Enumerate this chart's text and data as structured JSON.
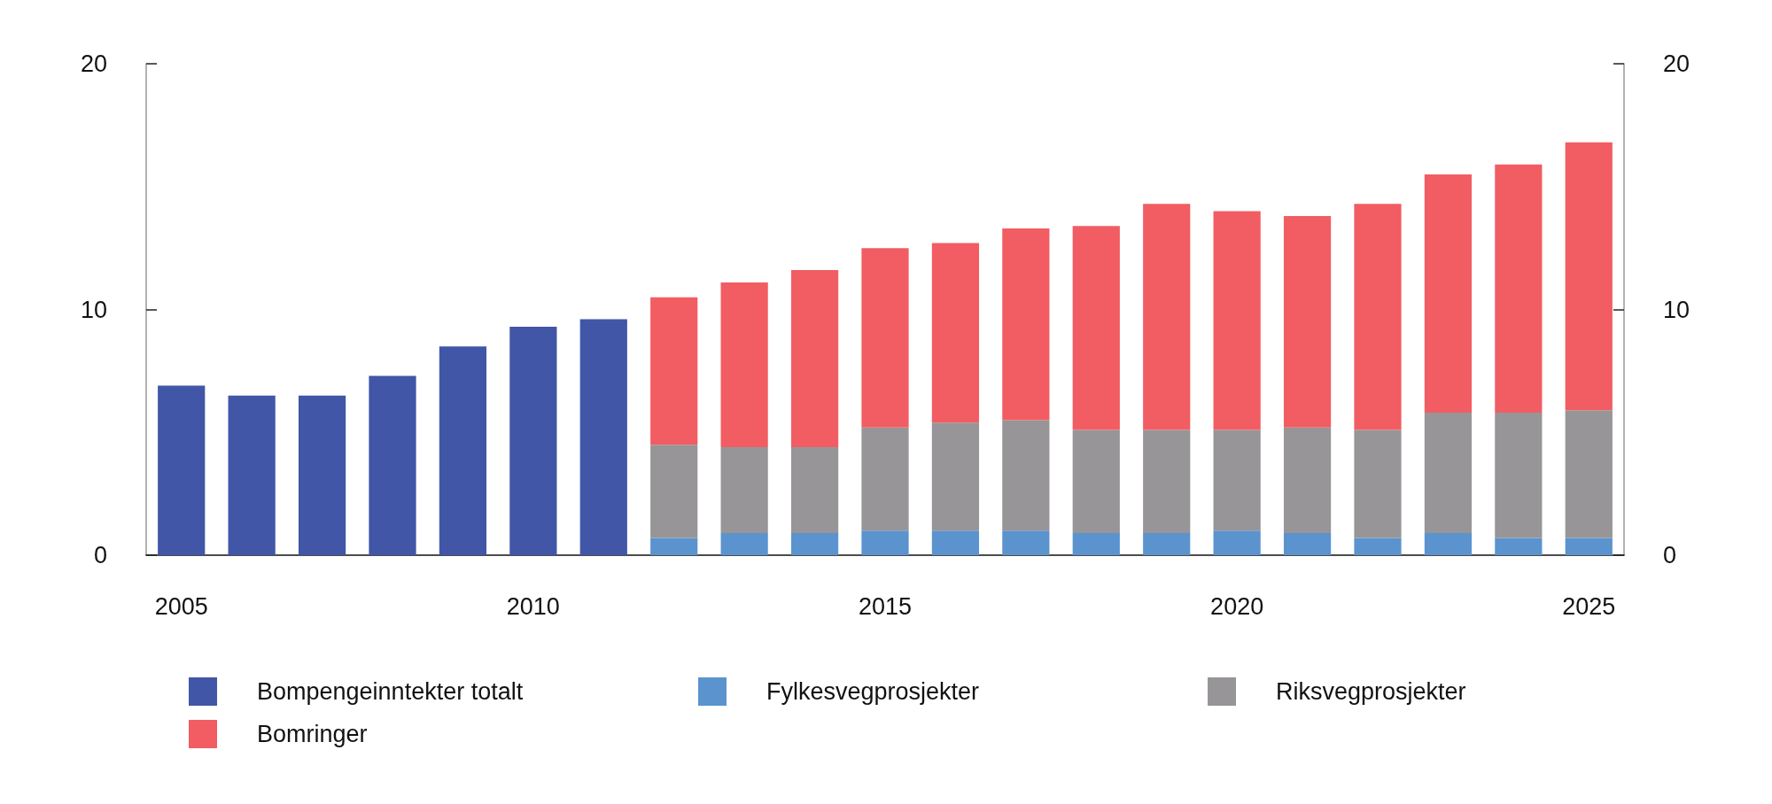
{
  "chart_data": {
    "type": "bar",
    "stacked": true,
    "categories": [
      "2005",
      null,
      null,
      null,
      null,
      "2010",
      null,
      null,
      null,
      null,
      "2015",
      null,
      null,
      null,
      null,
      "2020",
      null,
      null,
      null,
      null,
      "2025"
    ],
    "series": [
      {
        "name": "Bompengeinntekter totalt",
        "color": "#4156a6",
        "values": [
          6.9,
          6.5,
          6.5,
          7.3,
          8.5,
          9.3,
          9.6,
          null,
          null,
          null,
          null,
          null,
          null,
          null,
          null,
          null,
          null,
          null,
          null,
          null,
          null
        ]
      },
      {
        "name": "Fylkesvegprosjekter",
        "color": "#5b93cf",
        "values": [
          null,
          null,
          null,
          null,
          null,
          null,
          null,
          0.7,
          0.9,
          0.9,
          1.0,
          1.0,
          1.0,
          0.9,
          0.9,
          1.0,
          0.9,
          0.7,
          0.9,
          0.7,
          0.7
        ]
      },
      {
        "name": "Riksvegprosjekter",
        "color": "#979597",
        "values": [
          null,
          null,
          null,
          null,
          null,
          null,
          null,
          3.8,
          3.5,
          3.5,
          4.2,
          4.4,
          4.5,
          4.2,
          4.2,
          4.1,
          4.3,
          4.4,
          4.9,
          5.1,
          5.2
        ]
      },
      {
        "name": "Bomringer",
        "color": "#f15d62",
        "values": [
          null,
          null,
          null,
          null,
          null,
          null,
          null,
          6.0,
          6.7,
          7.2,
          7.3,
          7.3,
          7.8,
          8.3,
          9.2,
          8.9,
          8.6,
          9.2,
          9.7,
          10.1,
          10.9
        ]
      }
    ],
    "ylim": [
      0,
      20
    ],
    "yticks": [
      0,
      10,
      20
    ],
    "y2lim": [
      0,
      20
    ],
    "y2ticks": [
      0,
      10,
      20
    ],
    "grid": false,
    "legend": "bottom"
  }
}
